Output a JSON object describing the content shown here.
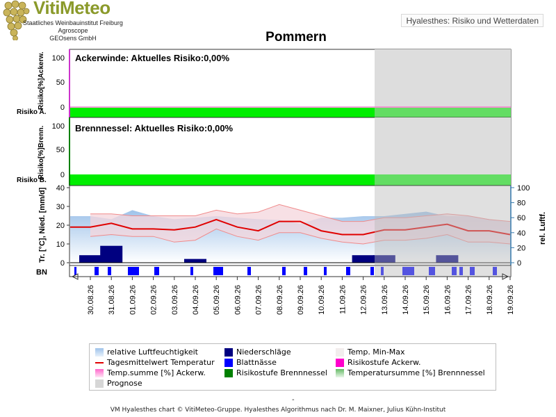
{
  "header": {
    "logo_title": "VitiMeteo",
    "logo_lines": [
      "Staatliches Weinbauinstitut Freiburg",
      "Agroscope",
      "GEOsens GmbH"
    ],
    "header_box": "Hyalesthes: Risiko und Wetterdaten",
    "chart_title": "Pommern"
  },
  "panels": {
    "ackerwinde": {
      "title": "Ackerwinde: Aktuelles Risiko:0,00%",
      "ylabel": "Risiko[%]Ackerw.",
      "side_label": "Risiko A.",
      "ticks": [
        "100",
        "50",
        "0"
      ]
    },
    "brennnessel": {
      "title": "Brennnessel: Aktuelles Risiko:0,00%",
      "ylabel": "Risiko[%]Brenn.",
      "side_label": "Risiko B.",
      "ticks": [
        "100",
        "50",
        "0"
      ]
    },
    "weather": {
      "ylabel_left": "Tr. [°C], Nied. [mm/d]",
      "ylabel_right": "rel. Luftf.",
      "left_ticks": [
        "40",
        "30",
        "20",
        "10",
        "0"
      ],
      "right_ticks": [
        "100",
        "80",
        "60",
        "40",
        "20",
        "0"
      ]
    },
    "bn_label": "BN"
  },
  "chart_data": {
    "type": "line",
    "categories": [
      "30.08.26",
      "31.08.26",
      "01.09.26",
      "02.09.26",
      "03.09.26",
      "04.09.26",
      "05.09.26",
      "06.09.26",
      "07.09.26",
      "08.09.26",
      "09.09.26",
      "10.09.26",
      "11.09.26",
      "12.09.26",
      "13.09.26",
      "14.09.26",
      "15.09.26",
      "16.09.26",
      "17.09.26",
      "18.09.26",
      "19.09.26"
    ],
    "forecast_from": "13.09.26",
    "risk_ackerwinde": [
      0,
      0,
      0,
      0,
      0,
      0,
      0,
      0,
      0,
      0,
      0,
      0,
      0,
      0,
      0,
      0,
      0,
      0,
      0,
      0,
      0
    ],
    "risk_brennnessel": [
      0,
      0,
      0,
      0,
      0,
      0,
      0,
      0,
      0,
      0,
      0,
      0,
      0,
      0,
      0,
      0,
      0,
      0,
      0,
      0,
      0
    ],
    "temp_mean": [
      19,
      21,
      18,
      18,
      17.5,
      19,
      23,
      19,
      17,
      22,
      22,
      17,
      15,
      15,
      17.5,
      17.5,
      19,
      20.5,
      17,
      17,
      15
    ],
    "temp_max": [
      26,
      26,
      25,
      25,
      25,
      25,
      28,
      26,
      27,
      31,
      28,
      25,
      22,
      22,
      24,
      24,
      25,
      26,
      25,
      23,
      22
    ],
    "temp_min": [
      14,
      15,
      14,
      14,
      11,
      12,
      18,
      14,
      12,
      16,
      16,
      13,
      11,
      10,
      12,
      12,
      13,
      15,
      11,
      11,
      10
    ],
    "humidity": [
      62,
      58,
      70,
      62,
      58,
      60,
      62,
      60,
      58,
      57,
      52,
      60,
      60,
      62,
      62,
      65,
      68,
      62,
      62,
      58,
      54
    ],
    "precip": [
      {
        "date": "30.08.26",
        "mm": 4
      },
      {
        "date": "31.08.26",
        "mm": 9
      },
      {
        "date": "04.09.26",
        "mm": 2
      },
      {
        "date": "12.09.26",
        "mm": 4
      },
      {
        "date": "13.09.26",
        "mm": 4
      },
      {
        "date": "16.09.26",
        "mm": 4
      }
    ],
    "left_ylim": [
      0,
      40
    ],
    "right_ylim": [
      0,
      100
    ],
    "risk_ylim": [
      0,
      100
    ]
  },
  "legend": {
    "items": [
      {
        "label": "relative Luftfeuchtigkeit",
        "swatch": "humidity",
        "color": "#a8c9ec"
      },
      {
        "label": "Niederschläge",
        "swatch": "box",
        "color": "#000080"
      },
      {
        "label": "Temp. Min-Max",
        "swatch": "box",
        "color": "#f2eded"
      },
      {
        "label": "Tagesmittelwert Temperatur",
        "swatch": "line",
        "color": "#e00000"
      },
      {
        "label": "Blattnässe",
        "swatch": "box",
        "color": "#0000ff"
      },
      {
        "label": "Risikostufe Ackerw.",
        "swatch": "box",
        "color": "#ff00cc"
      },
      {
        "label": "Temp.summe [%] Ackerw.",
        "swatch": "gradient",
        "color": "#ff66cc"
      },
      {
        "label": "Risikostufe Brennnessel",
        "swatch": "box",
        "color": "#008000"
      },
      {
        "label": "Temperatursumme [%] Brennnessel",
        "swatch": "gradient",
        "color": "#66bb66"
      },
      {
        "label": "Prognose",
        "swatch": "box",
        "color": "#d6d6d6"
      }
    ]
  },
  "footer": {
    "dash": "-",
    "text": "VM Hyalesthes chart © VitiMeteo-Gruppe. Hyalesthes Algorithmus nach Dr. M. Maixner, Julius Kühn-Institut"
  },
  "colors": {
    "risk_green": "#00ee00",
    "forecast_gray": "#d6d6d6",
    "temp_line": "#e00000",
    "precip": "#000080",
    "leafwet": "#0000ff",
    "humidity": "#a8c9ec"
  }
}
